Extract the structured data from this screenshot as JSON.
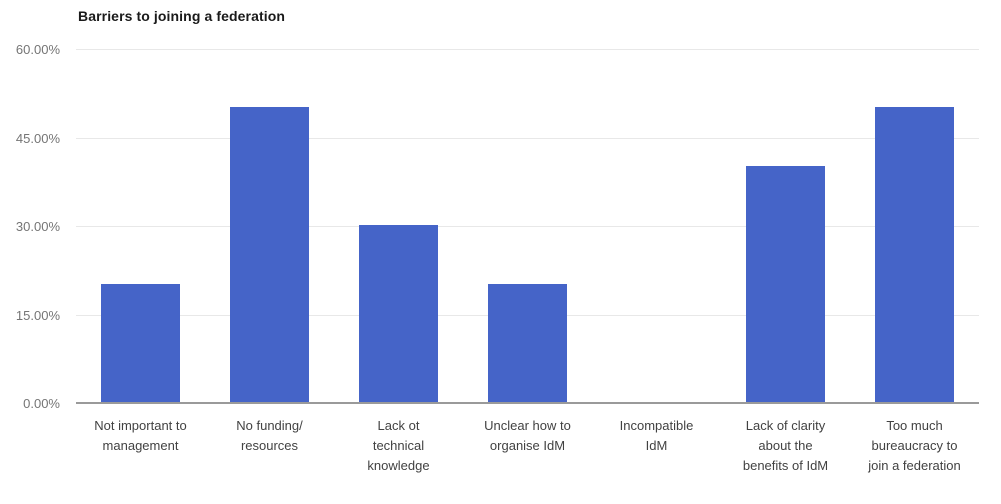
{
  "chart_data": {
    "type": "bar",
    "title": "Barriers to joining a federation",
    "categories": [
      "Not important to\nmanagement",
      "No funding/\nresources",
      "Lack ot\ntechnical\nknowledge",
      "Unclear how to\norganise IdM",
      "Incompatible\nIdM",
      "Lack of clarity\nabout the\nbenefits of IdM",
      "Too much\nbureaucracy to\njoin a federation"
    ],
    "values": [
      20,
      50,
      30,
      20,
      0,
      40,
      50
    ],
    "xlabel": "",
    "ylabel": "",
    "ylim": [
      0,
      60
    ],
    "y_ticks": [
      {
        "value": 60,
        "label": "60.00%"
      },
      {
        "value": 45,
        "label": "45.00%"
      },
      {
        "value": 30,
        "label": "30.00%"
      },
      {
        "value": 15,
        "label": "15.00%"
      },
      {
        "value": 0,
        "label": "0.00%"
      }
    ],
    "grid": true,
    "legend": "none",
    "colors": {
      "bar": "#4564c8",
      "title": "#1a1a1a",
      "y_tick_text": "#757575",
      "x_tick_text": "#424242",
      "gridline": "#e8e8e8",
      "baseline": "#9a9a9a",
      "background": "#ffffff"
    }
  }
}
